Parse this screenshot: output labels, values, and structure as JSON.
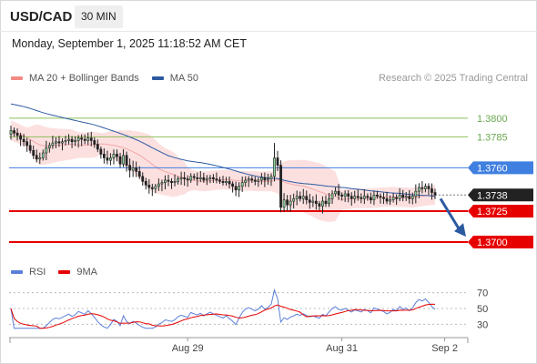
{
  "header": {
    "symbol": "USD/CAD",
    "timeframe": "30 MIN",
    "timestamp": "Monday, September 1, 2025 11:18:52 AM CET"
  },
  "legend": {
    "price": [
      {
        "label": "MA 20 + Bollinger Bands",
        "color": "#f28b82"
      },
      {
        "label": "MA 50",
        "color": "#2c5aa0"
      }
    ],
    "credit": "Research © 2025 Trading Central",
    "rsi": [
      {
        "label": "RSI",
        "color": "#5b7fd9"
      },
      {
        "label": "9MA",
        "color": "#e60000"
      }
    ]
  },
  "chart_data": [
    {
      "type": "candlestick",
      "ylim": [
        1.3686,
        1.3822
      ],
      "levels": [
        {
          "value": 1.38,
          "label": "1.3800",
          "kind": "resistance",
          "color": "#8cbf5a"
        },
        {
          "value": 1.3785,
          "label": "1.3785",
          "kind": "resistance",
          "color": "#8cbf5a"
        },
        {
          "value": 1.376,
          "label": "1.3760",
          "kind": "pivot",
          "color": "#3f7fe0"
        },
        {
          "value": 1.3738,
          "label": "1.3738",
          "kind": "last",
          "color": "#222222"
        },
        {
          "value": 1.3725,
          "label": "1.3725",
          "kind": "support",
          "color": "#e60000"
        },
        {
          "value": 1.37,
          "label": "1.3700",
          "kind": "support",
          "color": "#e60000"
        }
      ],
      "x_ticks": [
        {
          "label": "Aug 29",
          "index": 55
        },
        {
          "label": "Aug 31",
          "index": 103
        },
        {
          "label": "Sep 2",
          "index": 135
        }
      ],
      "forecast": {
        "from": 1.3735,
        "to": 1.3705
      },
      "closes": [
        1.379,
        1.3788,
        1.3786,
        1.3783,
        1.3781,
        1.3778,
        1.3774,
        1.377,
        1.3767,
        1.3768,
        1.3772,
        1.3776,
        1.3778,
        1.378,
        1.3781,
        1.378,
        1.3781,
        1.3782,
        1.3783,
        1.3781,
        1.3782,
        1.3784,
        1.3783,
        1.3782,
        1.3784,
        1.3782,
        1.3779,
        1.3775,
        1.3771,
        1.3768,
        1.3766,
        1.3768,
        1.3771,
        1.3769,
        1.3763,
        1.377,
        1.3762,
        1.3758,
        1.376,
        1.3757,
        1.3753,
        1.3749,
        1.3746,
        1.3744,
        1.3743,
        1.3745,
        1.3747,
        1.3748,
        1.375,
        1.3749,
        1.3748,
        1.3749,
        1.3751,
        1.3752,
        1.3751,
        1.375,
        1.3753,
        1.3752,
        1.3751,
        1.3752,
        1.375,
        1.3751,
        1.3752,
        1.3751,
        1.375,
        1.3749,
        1.3748,
        1.3749,
        1.3747,
        1.3745,
        1.3742,
        1.3745,
        1.3748,
        1.375,
        1.3751,
        1.375,
        1.3749,
        1.375,
        1.3752,
        1.375,
        1.3751,
        1.3753,
        1.3768,
        1.3762,
        1.3728,
        1.3734,
        1.373,
        1.3733,
        1.3735,
        1.3737,
        1.3735,
        1.3737,
        1.3734,
        1.3732,
        1.3733,
        1.3731,
        1.3729,
        1.3733,
        1.3731,
        1.3735,
        1.3739,
        1.3741,
        1.3738,
        1.3737,
        1.3739,
        1.3737,
        1.3735,
        1.3737,
        1.3736,
        1.3735,
        1.3737,
        1.3736,
        1.3734,
        1.3738,
        1.3737,
        1.3736,
        1.3735,
        1.3733,
        1.3734,
        1.3736,
        1.3735,
        1.3738,
        1.3736,
        1.3737,
        1.3735,
        1.3737,
        1.3741,
        1.3744,
        1.3743,
        1.3745,
        1.3743,
        1.374,
        1.3738
      ]
    },
    {
      "type": "line",
      "ylim": [
        20,
        80
      ],
      "y_ticks": [
        70,
        50,
        30
      ],
      "x_ticks": [
        "Aug 29",
        "Aug 31",
        "Sep 2"
      ]
    }
  ]
}
